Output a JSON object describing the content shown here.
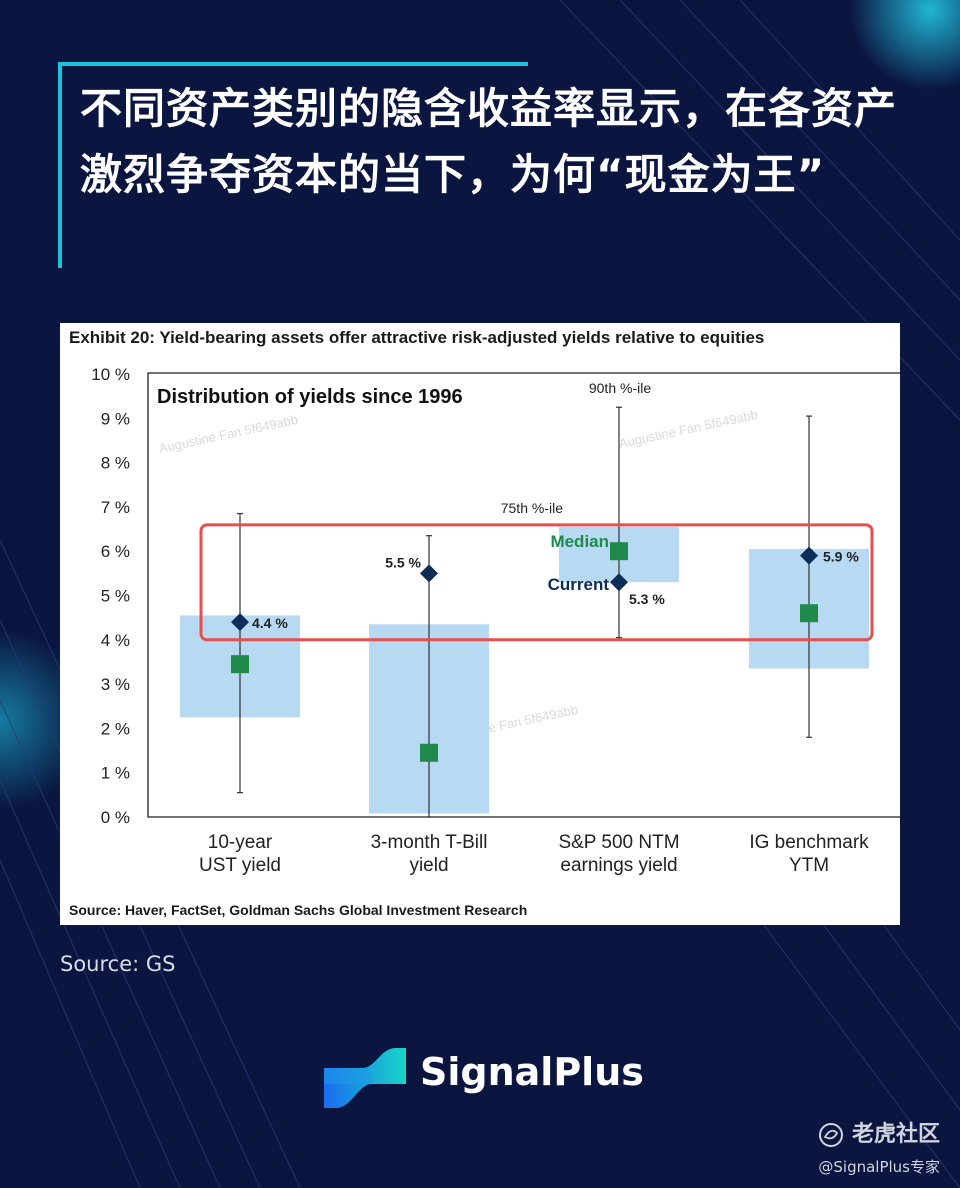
{
  "headline": {
    "text": "不同资产类别的隐含收益率显示，在各资产激烈争夺资本的当下，为何“现金为王”"
  },
  "exhibit_title": "Exhibit 20: Yield-bearing assets offer attractive risk-adjusted yields relative to equities",
  "source_inside": "Source: Haver, FactSet, Goldman Sachs Global Investment Research",
  "source_outside": "Source: GS",
  "brand": {
    "name": "SignalPlus"
  },
  "community": {
    "name": "老虎社区",
    "handle": "@SignalPlus专家"
  },
  "colors": {
    "background": "#0b1640",
    "accent": "#18c5d8",
    "box": "#b7d9f2",
    "median": "#1f8a4c",
    "current": "#0c2d57",
    "highlight": "#e2504f"
  },
  "chart_data": {
    "type": "box",
    "title": "Distribution of yields since 1996",
    "ylim": [
      0,
      10
    ],
    "y_ticks": [
      "0 %",
      "1 %",
      "2 %",
      "3 %",
      "4 %",
      "5 %",
      "6 %",
      "7 %",
      "8 %",
      "9 %",
      "10 %"
    ],
    "categories": [
      [
        "10-year",
        "UST yield"
      ],
      [
        "3-month T-Bill",
        "yield"
      ],
      [
        "S&P 500 NTM",
        "earnings yield"
      ],
      [
        "IG benchmark",
        "YTM"
      ]
    ],
    "series": [
      {
        "category": "10-year UST yield",
        "p10": 0.55,
        "p25": 2.25,
        "median": 3.45,
        "p75": 4.55,
        "p90": 6.85,
        "current": 4.4,
        "current_label": "4.4 %"
      },
      {
        "category": "3-month T-Bill yield",
        "p10": 0.0,
        "p25": 0.08,
        "median": 1.45,
        "p75": 4.35,
        "p90": 6.35,
        "current": 5.5,
        "current_label": "5.5 %"
      },
      {
        "category": "S&P 500 NTM earnings yield",
        "p10": 4.05,
        "p25": 5.3,
        "median": 6.0,
        "p75": 6.55,
        "p90": 9.25,
        "current": 5.3,
        "current_label": "5.3 %"
      },
      {
        "category": "IG benchmark YTM",
        "p10": 1.8,
        "p25": 3.35,
        "median": 4.6,
        "p75": 6.05,
        "p90": 9.05,
        "current": 5.9,
        "current_label": "5.9 %"
      }
    ],
    "annotations": {
      "p90_label": "90th %-ile",
      "p75_label": "75th %-ile",
      "median_label": "Median",
      "current_label": "Current"
    },
    "highlight_range": [
      4.0,
      6.55
    ],
    "watermark": "Augustine Fan 5f649abb"
  }
}
